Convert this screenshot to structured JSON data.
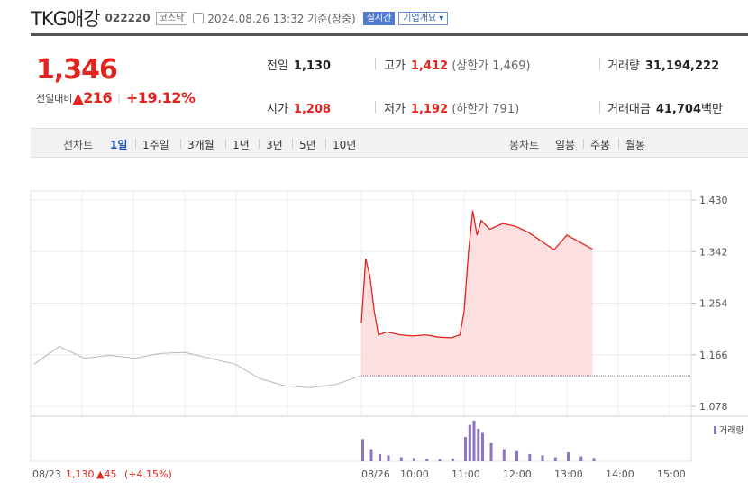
{
  "header": {
    "name": "TKG애강",
    "code": "022220",
    "market": "코스닥",
    "datetime": "2024.08.26 13:32 기준(장중)",
    "realtime": "실시간",
    "corp_info": "기업개요 ▾"
  },
  "quote": {
    "price": "1,346",
    "change_label": "전일대비",
    "change_value": "▲216",
    "change_pct": "+19.12%",
    "prev_close_label": "전일",
    "prev_close": "1,130",
    "high_label": "고가",
    "high": "1,412",
    "upper_limit": "(상한가 1,469)",
    "volume_label": "거래량",
    "volume": "31,194,222",
    "open_label": "시가",
    "open": "1,208",
    "low_label": "저가",
    "low": "1,192",
    "lower_limit": "(하한가 791)",
    "amount_label": "거래대금",
    "amount": "41,704",
    "amount_unit": "백만"
  },
  "tabs": {
    "line_label": "선차트",
    "periods": [
      "1일",
      "1주일",
      "3개월",
      "1년",
      "3년",
      "5년",
      "10년"
    ],
    "candle_label": "봉차트",
    "candles": [
      "일봉",
      "주봉",
      "월봉"
    ]
  },
  "colors": {
    "up": "#e3231e",
    "area_fill": "#fbd9d9",
    "prev_line": "#b8b8b8",
    "volume": "#8c76c2",
    "tab_active": "#1f4fb3"
  },
  "chart_data": {
    "type": "line",
    "y_ticks": [
      "1,430",
      "1,342",
      "1,254",
      "1,166",
      "1,078"
    ],
    "ylim": [
      1078,
      1430
    ],
    "x_ticks": [
      "08/26",
      "10:00",
      "11:00",
      "12:00",
      "13:00",
      "14:00",
      "15:00"
    ],
    "prev_day_label": "08/23",
    "prev_day_close": "1,130",
    "prev_day_change": "▲45",
    "prev_day_pct": "(+4.15%)",
    "volume_legend": "거래량",
    "baseline": 1130,
    "series": [
      {
        "x": [
          "08/23 09:00",
          "08/23 09:30",
          "08/23 10:00",
          "08/23 10:30",
          "08/23 11:00",
          "08/23 11:30",
          "08/23 12:00",
          "08/23 12:30",
          "08/23 13:00",
          "08/23 13:30",
          "08/23 14:00",
          "08/23 14:30",
          "08/23 15:00",
          "08/23 15:30"
        ],
        "values": [
          1150,
          1180,
          1160,
          1165,
          1160,
          1168,
          1170,
          1160,
          1150,
          1125,
          1113,
          1110,
          1115,
          1130
        ]
      },
      {
        "x": [
          "09:00",
          "09:05",
          "09:10",
          "09:15",
          "09:20",
          "09:30",
          "09:45",
          "10:00",
          "10:15",
          "10:30",
          "10:45",
          "10:55",
          "11:00",
          "11:05",
          "11:10",
          "11:15",
          "11:20",
          "11:30",
          "11:45",
          "12:00",
          "12:15",
          "12:30",
          "12:45",
          "13:00",
          "13:15",
          "13:30"
        ],
        "values": [
          1220,
          1330,
          1300,
          1240,
          1200,
          1205,
          1200,
          1198,
          1200,
          1196,
          1195,
          1200,
          1240,
          1340,
          1412,
          1370,
          1395,
          1380,
          1390,
          1385,
          1375,
          1360,
          1345,
          1370,
          1358,
          1346
        ]
      }
    ],
    "volume": {
      "x": [
        "09:00",
        "09:10",
        "09:20",
        "09:30",
        "09:45",
        "10:00",
        "10:15",
        "10:30",
        "10:45",
        "11:00",
        "11:05",
        "11:10",
        "11:15",
        "11:20",
        "11:30",
        "11:45",
        "12:00",
        "12:15",
        "12:30",
        "12:45",
        "13:00",
        "13:15",
        "13:30"
      ],
      "values": [
        55,
        30,
        18,
        15,
        10,
        8,
        6,
        5,
        7,
        60,
        90,
        100,
        80,
        70,
        45,
        30,
        25,
        18,
        15,
        10,
        22,
        12,
        8
      ]
    }
  }
}
